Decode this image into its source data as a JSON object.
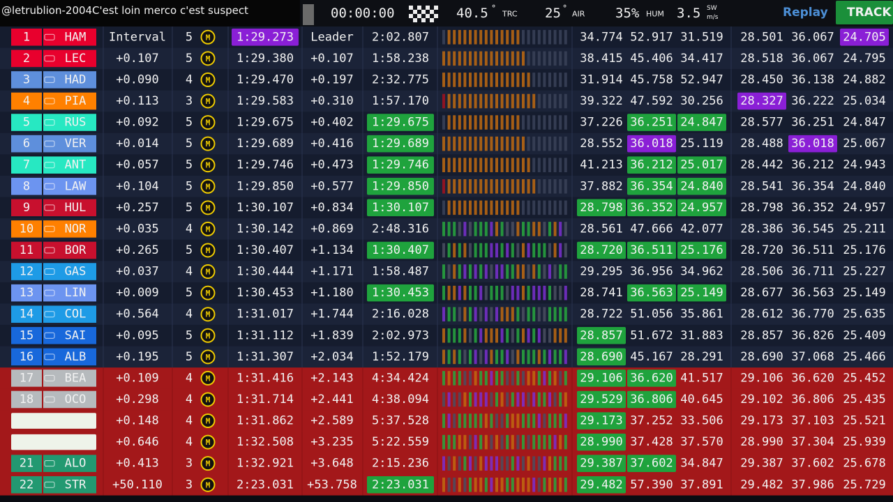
{
  "top_bar": {
    "chat_user": "@letrublion-2004",
    "chat_message": "C'est loin merco c'est suspect",
    "timer": "00:00:00",
    "track_temp": "40.5",
    "track_temp_unit": "°",
    "track_temp_label": "TRC",
    "air_temp": "25",
    "air_temp_unit": "°",
    "air_temp_label": "AIR",
    "humidity": "35%",
    "humidity_label": "HUM",
    "wind": "3.5",
    "wind_dir": "SW",
    "wind_unit": "m/s",
    "replay": "Replay",
    "track": "TRACK"
  },
  "rows": [
    {
      "pos": "1",
      "code": "HAM",
      "color": "#e8002d",
      "interval": "Interval",
      "laps": "5",
      "tyre": "M",
      "best": "1:29.273",
      "gap": "Leader",
      "last": "2:02.807",
      "sectors": [
        "34.774",
        "52.917",
        "31.519"
      ],
      "best_sectors": [
        "28.501",
        "36.067",
        "24.705"
      ]
    },
    {
      "pos": "2",
      "code": "LEC",
      "color": "#e8002d",
      "interval": "+0.107",
      "laps": "5",
      "tyre": "M",
      "best": "1:29.380",
      "gap": "+0.107",
      "last": "1:58.238",
      "sectors": [
        "38.415",
        "45.406",
        "34.417"
      ],
      "best_sectors": [
        "28.518",
        "36.067",
        "24.795"
      ]
    },
    {
      "pos": "3",
      "code": "HAD",
      "color": "#5e8fdc",
      "interval": "+0.090",
      "laps": "4",
      "tyre": "M",
      "best": "1:29.470",
      "gap": "+0.197",
      "last": "2:32.775",
      "sectors": [
        "31.914",
        "45.758",
        "52.947"
      ],
      "best_sectors": [
        "28.450",
        "36.138",
        "24.882"
      ]
    },
    {
      "pos": "4",
      "code": "PIA",
      "color": "#ff8000",
      "interval": "+0.113",
      "laps": "3",
      "tyre": "M",
      "best": "1:29.583",
      "gap": "+0.310",
      "last": "1:57.170",
      "sectors": [
        "39.322",
        "47.592",
        "30.256"
      ],
      "best_sectors": [
        "28.327",
        "36.222",
        "25.034"
      ]
    },
    {
      "pos": "5",
      "code": "RUS",
      "color": "#27e8c2",
      "interval": "+0.092",
      "laps": "5",
      "tyre": "M",
      "best": "1:29.675",
      "gap": "+0.402",
      "last": "1:29.675",
      "sectors": [
        "37.226",
        "36.251",
        "24.847"
      ],
      "best_sectors": [
        "28.577",
        "36.251",
        "24.847"
      ]
    },
    {
      "pos": "6",
      "code": "VER",
      "color": "#5e8fdc",
      "interval": "+0.014",
      "laps": "5",
      "tyre": "M",
      "best": "1:29.689",
      "gap": "+0.416",
      "last": "1:29.689",
      "sectors": [
        "28.552",
        "36.018",
        "25.119"
      ],
      "best_sectors": [
        "28.488",
        "36.018",
        "25.067"
      ]
    },
    {
      "pos": "7",
      "code": "ANT",
      "color": "#27e8c2",
      "interval": "+0.057",
      "laps": "5",
      "tyre": "M",
      "best": "1:29.746",
      "gap": "+0.473",
      "last": "1:29.746",
      "sectors": [
        "41.213",
        "36.212",
        "25.017"
      ],
      "best_sectors": [
        "28.442",
        "36.212",
        "24.943"
      ]
    },
    {
      "pos": "8",
      "code": "LAW",
      "color": "#6c94f0",
      "interval": "+0.104",
      "laps": "5",
      "tyre": "M",
      "best": "1:29.850",
      "gap": "+0.577",
      "last": "1:29.850",
      "sectors": [
        "37.882",
        "36.354",
        "24.840"
      ],
      "best_sectors": [
        "28.541",
        "36.354",
        "24.840"
      ]
    },
    {
      "pos": "9",
      "code": "HUL",
      "color": "#c8102e",
      "interval": "+0.257",
      "laps": "5",
      "tyre": "M",
      "best": "1:30.107",
      "gap": "+0.834",
      "last": "1:30.107",
      "sectors": [
        "28.798",
        "36.352",
        "24.957"
      ],
      "best_sectors": [
        "28.798",
        "36.352",
        "24.957"
      ]
    },
    {
      "pos": "10",
      "code": "NOR",
      "color": "#ff8000",
      "interval": "+0.035",
      "laps": "4",
      "tyre": "M",
      "best": "1:30.142",
      "gap": "+0.869",
      "last": "2:48.316",
      "sectors": [
        "28.561",
        "47.666",
        "42.077"
      ],
      "best_sectors": [
        "28.386",
        "36.545",
        "25.211"
      ]
    },
    {
      "pos": "11",
      "code": "BOR",
      "color": "#c8102e",
      "interval": "+0.265",
      "laps": "5",
      "tyre": "M",
      "best": "1:30.407",
      "gap": "+1.134",
      "last": "1:30.407",
      "sectors": [
        "28.720",
        "36.511",
        "25.176"
      ],
      "best_sectors": [
        "28.720",
        "36.511",
        "25.176"
      ]
    },
    {
      "pos": "12",
      "code": "GAS",
      "color": "#1e9be6",
      "interval": "+0.037",
      "laps": "4",
      "tyre": "M",
      "best": "1:30.444",
      "gap": "+1.171",
      "last": "1:58.487",
      "sectors": [
        "29.295",
        "36.956",
        "34.962"
      ],
      "best_sectors": [
        "28.506",
        "36.711",
        "25.227"
      ]
    },
    {
      "pos": "13",
      "code": "LIN",
      "color": "#6c94f0",
      "interval": "+0.009",
      "laps": "5",
      "tyre": "M",
      "best": "1:30.453",
      "gap": "+1.180",
      "last": "1:30.453",
      "sectors": [
        "28.741",
        "36.563",
        "25.149"
      ],
      "best_sectors": [
        "28.677",
        "36.563",
        "25.149"
      ]
    },
    {
      "pos": "14",
      "code": "COL",
      "color": "#1e9be6",
      "interval": "+0.564",
      "laps": "4",
      "tyre": "M",
      "best": "1:31.017",
      "gap": "+1.744",
      "last": "2:16.028",
      "sectors": [
        "28.722",
        "51.056",
        "35.861"
      ],
      "best_sectors": [
        "28.612",
        "36.770",
        "25.635"
      ]
    },
    {
      "pos": "15",
      "code": "SAI",
      "color": "#1868db",
      "interval": "+0.095",
      "laps": "5",
      "tyre": "M",
      "best": "1:31.112",
      "gap": "+1.839",
      "last": "2:02.973",
      "sectors": [
        "28.857",
        "51.672",
        "31.883"
      ],
      "best_sectors": [
        "28.857",
        "36.826",
        "25.409"
      ]
    },
    {
      "pos": "16",
      "code": "ALB",
      "color": "#1868db",
      "interval": "+0.195",
      "laps": "5",
      "tyre": "M",
      "best": "1:31.307",
      "gap": "+2.034",
      "last": "1:52.179",
      "sectors": [
        "28.690",
        "45.167",
        "28.291"
      ],
      "best_sectors": [
        "28.690",
        "37.068",
        "25.466"
      ]
    },
    {
      "pos": "17",
      "code": "BEA",
      "color": "#b6babd",
      "interval": "+0.109",
      "laps": "4",
      "tyre": "M",
      "best": "1:31.416",
      "gap": "+2.143",
      "last": "4:34.424",
      "sectors": [
        "29.106",
        "36.620",
        "41.517"
      ],
      "best_sectors": [
        "29.106",
        "36.620",
        "25.452"
      ]
    },
    {
      "pos": "18",
      "code": "OCO",
      "color": "#b6babd",
      "interval": "+0.298",
      "laps": "4",
      "tyre": "M",
      "best": "1:31.714",
      "gap": "+2.441",
      "last": "4:38.094",
      "sectors": [
        "29.529",
        "36.806",
        "40.645"
      ],
      "best_sectors": [
        "29.102",
        "36.806",
        "25.435"
      ]
    },
    {
      "color": "#eef3ea",
      "interval": "+0.148",
      "laps": "4",
      "tyre": "M",
      "best": "1:31.862",
      "gap": "+2.589",
      "last": "5:37.528",
      "sectors": [
        "29.173",
        "37.252",
        "33.506"
      ],
      "best_sectors": [
        "29.173",
        "37.103",
        "25.521"
      ]
    },
    {
      "color": "#eef3ea",
      "interval": "+0.646",
      "laps": "4",
      "tyre": "M",
      "best": "1:32.508",
      "gap": "+3.235",
      "last": "5:22.559",
      "sectors": [
        "28.990",
        "37.428",
        "37.570"
      ],
      "best_sectors": [
        "28.990",
        "37.304",
        "25.939"
      ]
    },
    {
      "pos": "21",
      "code": "ALO",
      "color": "#229971",
      "interval": "+0.413",
      "laps": "3",
      "tyre": "M",
      "best": "1:32.921",
      "gap": "+3.648",
      "last": "2:15.236",
      "sectors": [
        "29.387",
        "37.602",
        "34.847"
      ],
      "best_sectors": [
        "29.387",
        "37.602",
        "25.678"
      ]
    },
    {
      "pos": "22",
      "code": "STR",
      "color": "#229971",
      "interval": "+50.110",
      "laps": "3",
      "tyre": "M",
      "best": "2:23.031",
      "gap": "+53.758",
      "last": "2:23.031",
      "sectors": [
        "29.482",
        "57.390",
        "37.891"
      ],
      "best_sectors": [
        "29.482",
        "37.986",
        "25.729"
      ]
    }
  ]
}
